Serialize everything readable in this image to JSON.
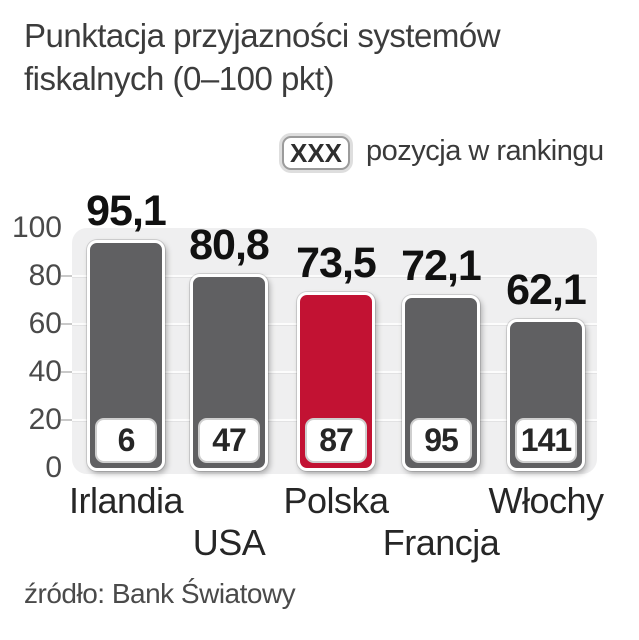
{
  "title": "Punktacja przyjazności systemów\nfiskalnych (0–100 pkt)",
  "legend": {
    "badge": "XXX",
    "label": "pozycja w rankingu"
  },
  "source": "źródło: Bank Światowy",
  "chart_data": {
    "type": "bar",
    "title": "Punktacja przyjazności systemów fiskalnych (0–100 pkt)",
    "categories": [
      "Irlandia",
      "USA",
      "Polska",
      "Francja",
      "Włochy"
    ],
    "values": [
      95.1,
      80.8,
      73.5,
      72.1,
      62.1
    ],
    "value_labels": [
      "95,1",
      "80,8",
      "73,5",
      "72,1",
      "62,1"
    ],
    "ranks": [
      "6",
      "47",
      "87",
      "95",
      "141"
    ],
    "rank_legend_badge": "XXX",
    "rank_legend_label": "pozycja w rankingu",
    "highlighted_category": "Polska",
    "ylim": [
      0,
      100
    ],
    "yticks": [
      0,
      20,
      40,
      60,
      80,
      100
    ],
    "grid": true,
    "legend_position": "top-right",
    "source": "źródło: Bank Światowy",
    "colors": {
      "bar": "#606062",
      "highlight": "#c21233",
      "plot_background": "#efeff0",
      "rank_badge_background": "#ffffff",
      "value_label_text": "#111111"
    }
  }
}
